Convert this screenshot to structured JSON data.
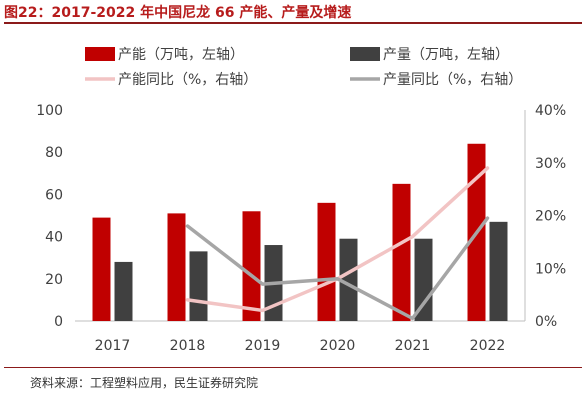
{
  "figure": {
    "title": "图22：2017-2022 年中国尼龙 66 产能、产量及增速",
    "source": "资料来源：工程塑料应用，民生证券研究院"
  },
  "chart_data": {
    "type": "bar",
    "categories": [
      "2017",
      "2018",
      "2019",
      "2020",
      "2021",
      "2022"
    ],
    "series": [
      {
        "name": "产能（万吨，左轴）",
        "kind": "bar",
        "axis": "left",
        "color": "#c00000",
        "values": [
          49,
          51,
          52,
          56,
          65,
          84
        ]
      },
      {
        "name": "产量（万吨，左轴）",
        "kind": "bar",
        "axis": "left",
        "color": "#404040",
        "values": [
          28,
          33,
          36,
          39,
          39,
          47
        ]
      },
      {
        "name": "产能同比（%，右轴）",
        "kind": "line",
        "axis": "right",
        "color": "#f2c4c4",
        "values": [
          null,
          4,
          2,
          8,
          16,
          29
        ]
      },
      {
        "name": "产量同比（%，右轴）",
        "kind": "line",
        "axis": "right",
        "color": "#a6a6a6",
        "values": [
          null,
          18,
          7,
          8,
          0.5,
          19.5
        ]
      }
    ],
    "y_left": {
      "min": 0,
      "max": 100,
      "ticks": [
        "0",
        "20",
        "40",
        "60",
        "80",
        "100"
      ]
    },
    "y_right": {
      "min": 0,
      "max": 40,
      "ticks": [
        "0%",
        "10%",
        "20%",
        "30%",
        "40%"
      ]
    },
    "legend": "top",
    "grid": false
  }
}
